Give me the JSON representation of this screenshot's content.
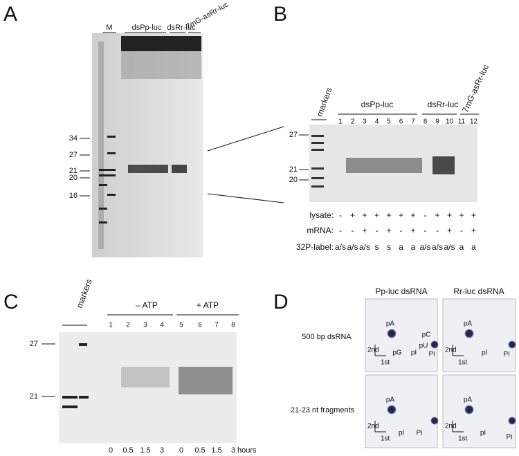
{
  "panels": {
    "a": {
      "letter": "A",
      "marker_lane": "M",
      "groups": [
        "dsPp-luc",
        "dsRr-luc",
        "7mG-asRr-luc"
      ],
      "size_markers": [
        "34",
        "27",
        "21",
        "20",
        "16"
      ]
    },
    "b": {
      "letter": "B",
      "marker_lane": "markers",
      "groups": [
        "dsPp-luc",
        "dsRr-luc",
        "7mG-asRr-luc"
      ],
      "lanes": [
        "1",
        "2",
        "3",
        "4",
        "5",
        "6",
        "7",
        "8",
        "9",
        "10",
        "11",
        "12"
      ],
      "size_markers": [
        "27",
        "21",
        "20"
      ],
      "row_labels": [
        "lysate:",
        "mRNA:",
        "32P-label:"
      ],
      "lysate": [
        "-",
        "+",
        "+",
        "+",
        "+",
        "+",
        "+",
        "-",
        "+",
        "+",
        "+",
        "+"
      ],
      "mrna": [
        "-",
        "-",
        "+",
        "-",
        "+",
        "-",
        "+",
        "-",
        "-",
        "+",
        "-",
        "+"
      ],
      "label": [
        "a/s",
        "a/s",
        "a/s",
        "s",
        "s",
        "a",
        "a",
        "a/s",
        "a/s",
        "a/s",
        "a",
        "a"
      ]
    },
    "c": {
      "letter": "C",
      "marker_lane": "markers",
      "groups": [
        "– ATP",
        "+ ATP"
      ],
      "lanes": [
        "1",
        "2",
        "3",
        "4",
        "5",
        "6",
        "7",
        "8"
      ],
      "size_markers": [
        "27",
        "21"
      ],
      "times": [
        "0",
        "0.5",
        "1.5",
        "3",
        "0",
        "0.5",
        "1.5",
        "3"
      ],
      "time_unit": "hours"
    },
    "d": {
      "letter": "D",
      "columns": [
        "Pp-luc dsRNA",
        "Rr-luc dsRNA"
      ],
      "rows": [
        "500 bp dsRNA",
        "21-23 nt fragments"
      ],
      "spots": [
        "pA",
        "pG",
        "pI",
        "pC",
        "pU",
        "Pi"
      ],
      "axes": [
        "2nd",
        "1st"
      ]
    }
  }
}
